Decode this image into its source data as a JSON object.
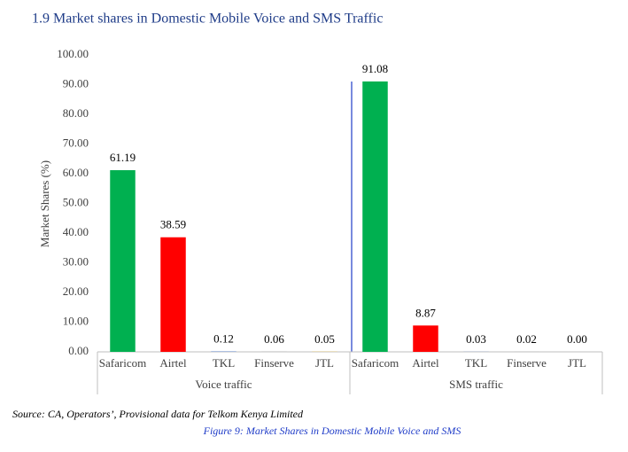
{
  "heading": "1.9 Market shares in Domestic Mobile Voice and SMS Traffic",
  "source": "Source: CA, Operators’, Provisional data for Telkom Kenya Limited",
  "caption": "Figure 9: Market Shares in Domestic Mobile Voice and SMS",
  "chart_data": {
    "type": "bar",
    "y_label": "Market Shares (%)",
    "categories": [
      "Safaricom",
      "Airtel",
      "TKL",
      "Finserve",
      "JTL"
    ],
    "colors": [
      "#00b050",
      "#ff0000",
      "#4472c4",
      "#a5a5a5",
      "#ffc000"
    ],
    "groups": [
      {
        "name": "Voice traffic",
        "values": [
          61.19,
          38.59,
          0.12,
          0.06,
          0.05
        ],
        "value_labels": [
          "61.19",
          "38.59",
          "0.12",
          "0.06",
          "0.05"
        ]
      },
      {
        "name": "SMS traffic",
        "values": [
          91.08,
          8.87,
          0.03,
          0.02,
          0
        ],
        "value_labels": [
          "91.08",
          "8.87",
          "0.03",
          "0.02",
          "0.00"
        ]
      }
    ],
    "ylim": [
      0,
      100
    ],
    "yticks": [
      {
        "value": 0,
        "label": "0.00"
      },
      {
        "value": 10,
        "label": "10.00"
      },
      {
        "value": 20,
        "label": "20.00"
      },
      {
        "value": 30,
        "label": "30.00"
      },
      {
        "value": 40,
        "label": "40.00"
      },
      {
        "value": 50,
        "label": "50.00"
      },
      {
        "value": 60,
        "label": "60.00"
      },
      {
        "value": 70,
        "label": "70.00"
      },
      {
        "value": 80,
        "label": "80.00"
      },
      {
        "value": 90,
        "label": "90.00"
      },
      {
        "value": 100,
        "label": "100.00"
      }
    ],
    "grid": false
  }
}
